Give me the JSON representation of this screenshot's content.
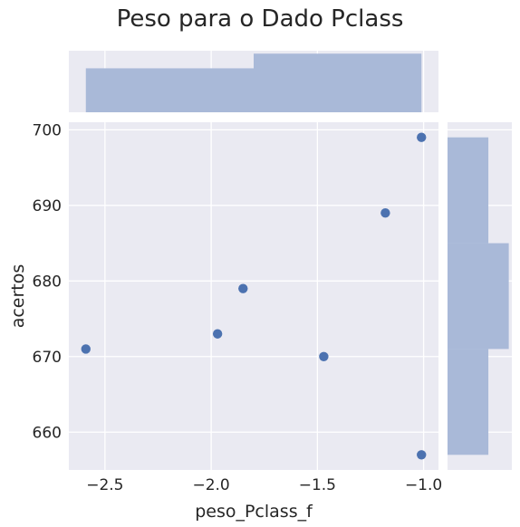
{
  "chart_data": {
    "type": "scatter",
    "title": "Peso para o Dado Pclass",
    "xlabel": "peso_Pclass_f",
    "ylabel": "acertos",
    "xlim": [
      -2.67,
      -0.93
    ],
    "ylim": [
      655,
      701
    ],
    "xticks": [
      -2.5,
      -2.0,
      -1.5,
      -1.0
    ],
    "xtick_labels": [
      "−2.5",
      "−2.0",
      "−1.5",
      "−1.0"
    ],
    "yticks": [
      660,
      670,
      680,
      690,
      700
    ],
    "ytick_labels": [
      "660",
      "670",
      "680",
      "690",
      "700"
    ],
    "grid": true,
    "style": "seaborn jointplot",
    "points": [
      {
        "x": -2.59,
        "y": 671
      },
      {
        "x": -1.97,
        "y": 673
      },
      {
        "x": -1.85,
        "y": 679
      },
      {
        "x": -1.47,
        "y": 670
      },
      {
        "x": -1.18,
        "y": 689
      },
      {
        "x": -1.01,
        "y": 699
      },
      {
        "x": -1.01,
        "y": 657
      }
    ],
    "marginal_x": {
      "type": "histogram",
      "bins": [
        {
          "x0": -2.59,
          "x1": -1.8,
          "count": 3
        },
        {
          "x0": -1.8,
          "x1": -1.01,
          "count": 4
        }
      ]
    },
    "marginal_y": {
      "type": "histogram",
      "bins": [
        {
          "y0": 657,
          "y1": 671,
          "count": 2
        },
        {
          "y0": 671,
          "y1": 685,
          "count": 3
        },
        {
          "y0": 685,
          "y1": 699,
          "count": 2
        }
      ]
    },
    "colors": {
      "background": "#eaeaf2",
      "grid": "#ffffff",
      "point": "#4c72b0",
      "histogram": "#a9b9d8"
    }
  }
}
